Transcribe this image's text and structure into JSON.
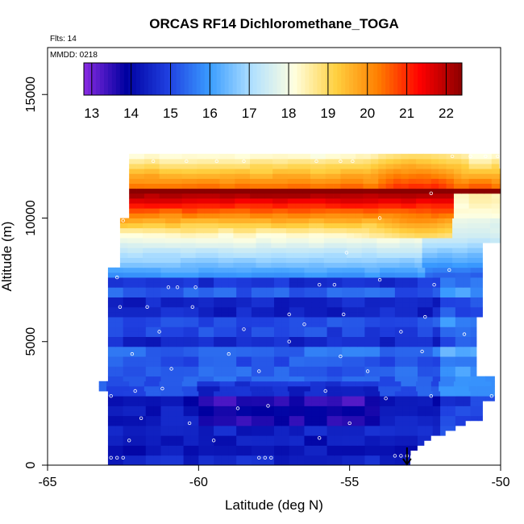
{
  "chart_data": {
    "type": "heatmap",
    "title": "ORCAS RF14 Dichloromethane_TOGA",
    "flights_note": "Flts: 14",
    "date_note": "MMDD: 0218",
    "xlabel": "Latitude (deg N)",
    "ylabel": "Altitude (m)",
    "xlim": [
      -65,
      -50
    ],
    "ylim": [
      0,
      16900
    ],
    "x_ticks": [
      -65,
      -60,
      -55,
      -50
    ],
    "y_ticks": [
      0,
      5000,
      10000,
      15000
    ],
    "colorbar": {
      "range": [
        12.8,
        22.4
      ],
      "ticks": [
        13,
        14,
        15,
        16,
        17,
        18,
        19,
        20,
        21,
        22
      ],
      "colors": [
        "#8a2be2",
        "#0000a0",
        "#1f3fe0",
        "#3a9cff",
        "#b0e0ff",
        "#ffffe0",
        "#ffd040",
        "#ff7f00",
        "#ff0000",
        "#8b0000"
      ]
    },
    "arrow_marker": {
      "latitude": -53.1,
      "altitude": 0
    },
    "field_description_keys": {
      "lat_range": [
        -63.0,
        -50.0
      ],
      "upper_boundary_altitude": 12400
    },
    "observation_points": [
      {
        "lat": -62.9,
        "alt": 300
      },
      {
        "lat": -62.7,
        "alt": 300
      },
      {
        "lat": -62.5,
        "alt": 300
      },
      {
        "lat": -58.0,
        "alt": 300
      },
      {
        "lat": -57.8,
        "alt": 300
      },
      {
        "lat": -57.6,
        "alt": 300
      },
      {
        "lat": -53.5,
        "alt": 380
      },
      {
        "lat": -53.3,
        "alt": 380
      },
      {
        "lat": -53.1,
        "alt": 380
      },
      {
        "lat": -62.3,
        "alt": 1000
      },
      {
        "lat": -59.5,
        "alt": 1000
      },
      {
        "lat": -56.0,
        "alt": 1100
      },
      {
        "lat": -61.9,
        "alt": 1900
      },
      {
        "lat": -60.3,
        "alt": 1700
      },
      {
        "lat": -55.0,
        "alt": 1700
      },
      {
        "lat": -58.7,
        "alt": 2300
      },
      {
        "lat": -57.7,
        "alt": 2400
      },
      {
        "lat": -53.8,
        "alt": 2700
      },
      {
        "lat": -52.3,
        "alt": 2800
      },
      {
        "lat": -62.1,
        "alt": 3000
      },
      {
        "lat": -61.2,
        "alt": 3100
      },
      {
        "lat": -55.8,
        "alt": 3000
      },
      {
        "lat": -50.3,
        "alt": 2800
      },
      {
        "lat": -62.9,
        "alt": 2800
      },
      {
        "lat": -60.9,
        "alt": 3900
      },
      {
        "lat": -58.0,
        "alt": 3800
      },
      {
        "lat": -54.4,
        "alt": 3800
      },
      {
        "lat": -50.5,
        "alt": 3700
      },
      {
        "lat": -62.2,
        "alt": 4500
      },
      {
        "lat": -59.0,
        "alt": 4500
      },
      {
        "lat": -57.0,
        "alt": 5000
      },
      {
        "lat": -55.3,
        "alt": 4400
      },
      {
        "lat": -52.6,
        "alt": 4600
      },
      {
        "lat": -61.3,
        "alt": 5400
      },
      {
        "lat": -58.5,
        "alt": 5500
      },
      {
        "lat": -56.5,
        "alt": 5700
      },
      {
        "lat": -53.3,
        "alt": 5400
      },
      {
        "lat": -51.2,
        "alt": 5300
      },
      {
        "lat": -62.6,
        "alt": 6400
      },
      {
        "lat": -61.7,
        "alt": 6400
      },
      {
        "lat": -60.2,
        "alt": 6400
      },
      {
        "lat": -57.0,
        "alt": 6100
      },
      {
        "lat": -55.2,
        "alt": 6100
      },
      {
        "lat": -52.5,
        "alt": 6000
      },
      {
        "lat": -61.0,
        "alt": 7200
      },
      {
        "lat": -60.7,
        "alt": 7200
      },
      {
        "lat": -60.1,
        "alt": 7200
      },
      {
        "lat": -56.0,
        "alt": 7300
      },
      {
        "lat": -55.5,
        "alt": 7300
      },
      {
        "lat": -54.0,
        "alt": 7500
      },
      {
        "lat": -52.2,
        "alt": 7300
      },
      {
        "lat": -62.7,
        "alt": 7600
      },
      {
        "lat": -51.7,
        "alt": 7900
      },
      {
        "lat": -55.1,
        "alt": 8600
      },
      {
        "lat": -62.5,
        "alt": 9900
      },
      {
        "lat": -54.0,
        "alt": 10000
      },
      {
        "lat": -52.3,
        "alt": 11000
      },
      {
        "lat": -61.5,
        "alt": 12300
      },
      {
        "lat": -60.4,
        "alt": 12300
      },
      {
        "lat": -59.4,
        "alt": 12300
      },
      {
        "lat": -58.5,
        "alt": 12300
      },
      {
        "lat": -56.1,
        "alt": 12300
      },
      {
        "lat": -55.3,
        "alt": 12300
      },
      {
        "lat": -54.9,
        "alt": 12300
      },
      {
        "lat": -51.6,
        "alt": 12500
      },
      {
        "lat": -51.0,
        "alt": 12500
      },
      {
        "lat": -50.5,
        "alt": 12500
      },
      {
        "lat": -50.1,
        "alt": 12500
      }
    ]
  }
}
